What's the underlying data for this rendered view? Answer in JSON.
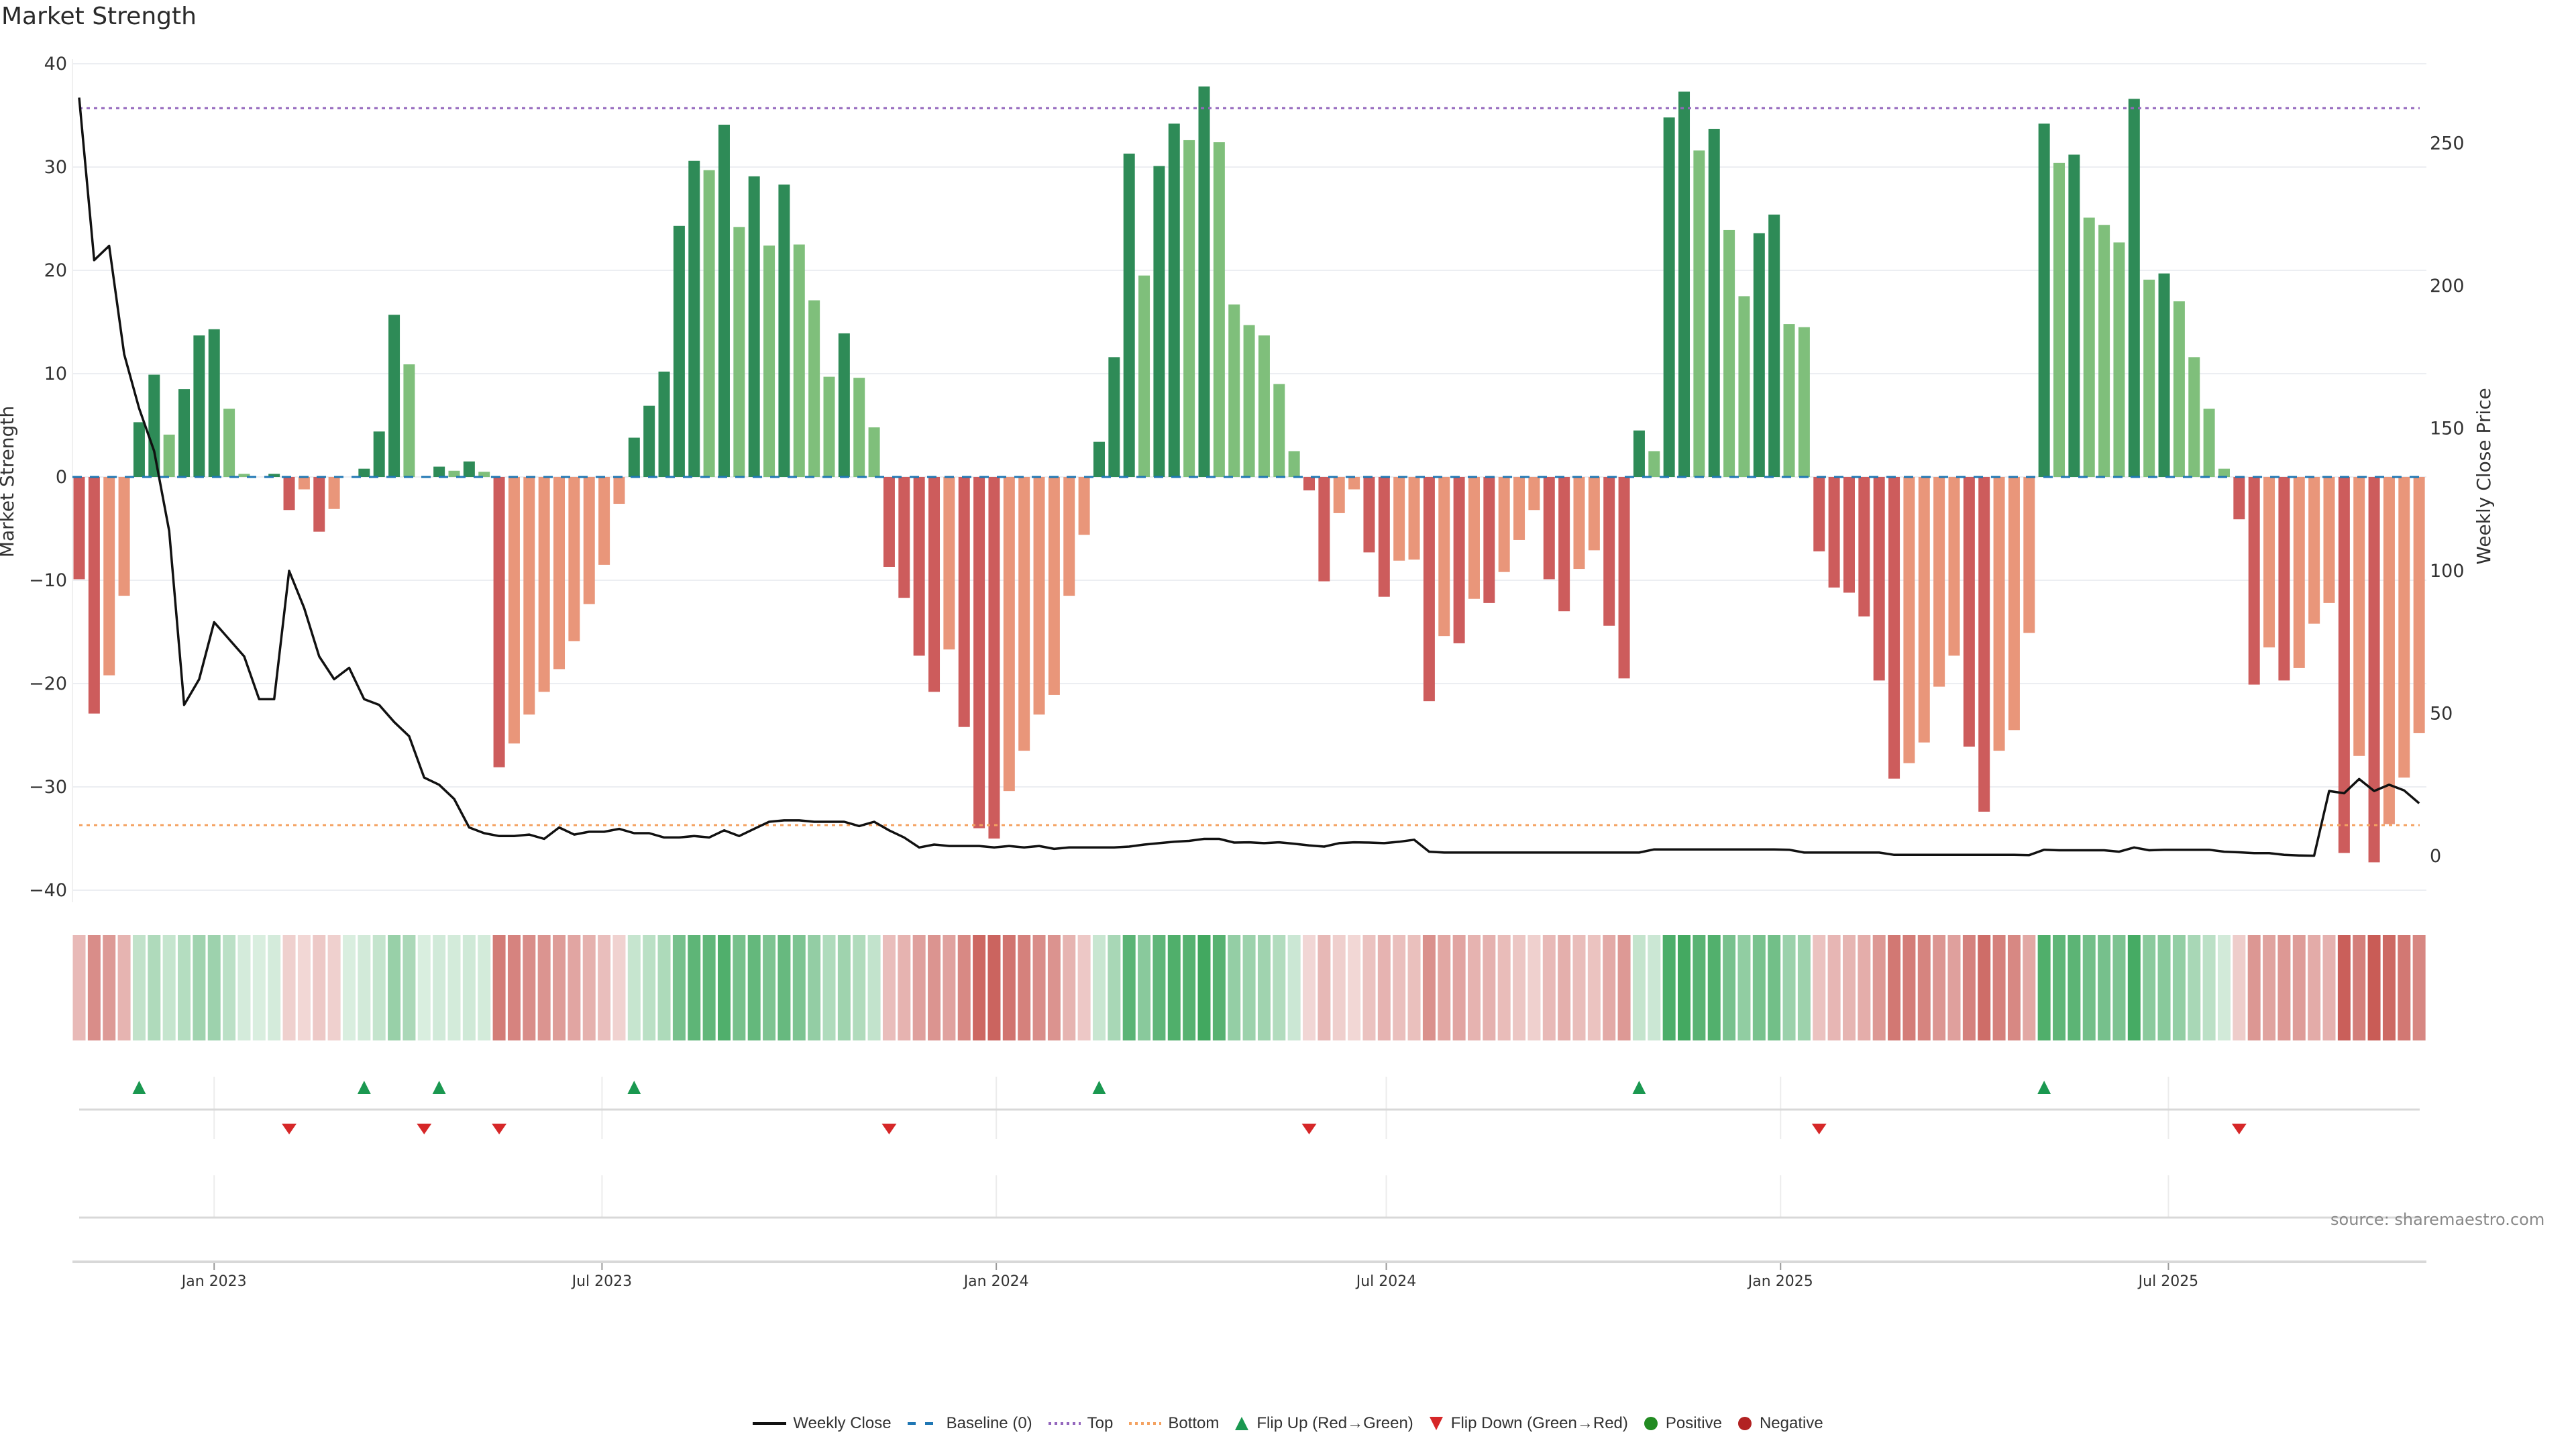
{
  "title": "Market Strength",
  "source": "source: sharemaestro.com",
  "colors": {
    "strong_green": "#2e8b57",
    "weak_green": "#7fbf7b",
    "strong_red": "#cd5c5c",
    "weak_red": "#e9967a",
    "heat_green": "#41a85f",
    "heat_red": "#c85a54",
    "close_line": "#111111",
    "baseline": "#1f77b4",
    "top": "#9467bd",
    "bottom": "#f4a261",
    "flip_up": "#1a9850",
    "flip_down": "#d62728",
    "positive": "#228b22",
    "negative": "#b22222"
  },
  "legend": [
    {
      "key": "weekly_close",
      "label": "Weekly Close"
    },
    {
      "key": "baseline",
      "label": "Baseline (0)"
    },
    {
      "key": "top",
      "label": "Top"
    },
    {
      "key": "bottom",
      "label": "Bottom"
    },
    {
      "key": "flip_up",
      "label": "Flip Up (Red→Green)"
    },
    {
      "key": "flip_down",
      "label": "Flip Down (Green→Red)"
    },
    {
      "key": "positive",
      "label": "Positive"
    },
    {
      "key": "negative",
      "label": "Negative"
    }
  ],
  "chart_data": {
    "type": "bar",
    "title": "Market Strength",
    "ylabel": "Market Strength",
    "y2label": "Weekly Close Price",
    "ylim": [
      -42,
      41
    ],
    "y_ticks": [
      "40",
      "30",
      "20",
      "10",
      "0",
      "−10",
      "−20",
      "−30",
      "−40"
    ],
    "y_tick_values": [
      40,
      30,
      20,
      10,
      0,
      -10,
      -20,
      -30,
      -40
    ],
    "y2_ticks": [
      "0",
      "50",
      "100",
      "150",
      "200",
      "250"
    ],
    "y2_tick_values": [
      0,
      50,
      100,
      150,
      200,
      250
    ],
    "x_ticks": [
      {
        "label": "Jan 2023",
        "date": "2023-01-01"
      },
      {
        "label": "Jul 2023",
        "date": "2023-07-01"
      },
      {
        "label": "Jan 2024",
        "date": "2024-01-01"
      },
      {
        "label": "Jul 2024",
        "date": "2024-07-01"
      },
      {
        "label": "Jan 2025",
        "date": "2025-01-01"
      },
      {
        "label": "Jul 2025",
        "date": "2025-07-01"
      }
    ],
    "start_date": "2022-10-30",
    "frequency": "weekly",
    "top": 35.7,
    "bottom": -33.7,
    "baseline": 0,
    "strength": [
      -9.9,
      -22.9,
      -19.2,
      -11.5,
      5.3,
      9.9,
      4.1,
      8.5,
      13.7,
      14.3,
      6.6,
      0.3,
      0,
      0.3,
      -3.2,
      -1.2,
      -5.3,
      -3.1,
      0,
      0.8,
      4.4,
      15.7,
      10.9,
      0,
      1.0,
      0.6,
      1.5,
      0.5,
      -28.1,
      -25.8,
      -23.0,
      -20.8,
      -18.6,
      -15.9,
      -12.3,
      -8.5,
      -2.6,
      3.8,
      6.9,
      10.2,
      24.3,
      30.6,
      29.7,
      34.1,
      24.2,
      29.1,
      22.4,
      28.3,
      22.5,
      17.1,
      9.7,
      13.9,
      9.6,
      4.8,
      -8.7,
      -11.7,
      -17.3,
      -20.8,
      -16.7,
      -24.2,
      -34.0,
      -35.0,
      -30.4,
      -26.5,
      -23.0,
      -21.1,
      -11.5,
      -5.6,
      3.4,
      11.6,
      31.3,
      19.5,
      30.1,
      34.2,
      32.6,
      37.8,
      32.4,
      16.7,
      14.7,
      13.7,
      9.0,
      2.5,
      -1.3,
      -10.1,
      -3.5,
      -1.2,
      -7.3,
      -11.6,
      -8.1,
      -8.0,
      -21.7,
      -15.4,
      -16.1,
      -11.8,
      -12.2,
      -9.2,
      -6.1,
      -3.2,
      -9.9,
      -13.0,
      -8.9,
      -7.1,
      -14.4,
      -19.5,
      4.5,
      2.5,
      34.8,
      37.3,
      31.6,
      33.7,
      23.9,
      17.5,
      23.6,
      25.4,
      14.8,
      14.5,
      -7.2,
      -10.7,
      -11.2,
      -13.5,
      -19.7,
      -29.2,
      -27.7,
      -25.7,
      -20.3,
      -17.3,
      -26.1,
      -32.4,
      -26.5,
      -24.5,
      -15.1,
      34.2,
      30.4,
      31.2,
      25.1,
      24.4,
      22.7,
      36.6,
      19.1,
      19.7,
      17.0,
      11.6,
      6.6,
      0.8,
      -4.1,
      -20.1,
      -16.5,
      -19.7,
      -18.5,
      -14.2,
      -12.2,
      -36.4,
      -27.0,
      -37.3,
      -33.6,
      -29.1,
      -24.8
    ],
    "weekly_close": [
      266,
      209,
      214,
      176,
      157,
      142,
      114,
      53,
      62,
      82,
      76,
      70,
      55,
      55,
      100,
      87,
      70,
      62,
      66,
      55,
      53,
      47,
      42,
      27.5,
      25,
      20,
      10,
      8,
      7,
      7,
      7.5,
      6,
      10,
      7.5,
      8.5,
      8.5,
      9.5,
      8,
      8,
      6.5,
      6.5,
      7,
      6.5,
      9,
      7,
      9.5,
      12,
      12.5,
      12.5,
      12,
      12,
      12,
      10.5,
      12,
      9,
      6.5,
      3,
      4,
      3.5,
      3.5,
      3.5,
      3,
      3.5,
      3,
      3.5,
      2.5,
      3,
      3,
      3,
      3,
      3.3,
      4,
      4.5,
      5,
      5.3,
      6,
      6,
      4.7,
      4.8,
      4.5,
      4.8,
      4.3,
      3.7,
      3.3,
      4.5,
      4.8,
      4.7,
      4.5,
      5,
      5.7,
      1.5,
      1.2,
      1.2,
      1.2,
      1.2,
      1.2,
      1.2,
      1.2,
      1.2,
      1.2,
      1.2,
      1.2,
      1.2,
      1.2,
      1.2,
      2.3,
      2.3,
      2.3,
      2.3,
      2.3,
      2.3,
      2.3,
      2.3,
      2.3,
      2.2,
      1.2,
      1.2,
      1.2,
      1.2,
      1.2,
      1.2,
      0.4,
      0.4,
      0.4,
      0.4,
      0.4,
      0.4,
      0.4,
      0.4,
      0.4,
      0.3,
      2.2,
      2,
      2,
      2,
      2,
      1.5,
      3,
      2,
      2.2,
      2.2,
      2.2,
      2.2,
      1.5,
      1.3,
      1,
      1,
      0.4,
      0.2,
      0.1,
      22.8,
      22,
      27,
      22.8,
      25,
      23,
      18.5
    ],
    "flip_up": [
      "2022-11-27",
      "2023-03-12",
      "2023-04-16",
      "2023-07-16",
      "2024-02-18",
      "2024-10-27",
      "2025-05-04"
    ],
    "flip_down": [
      "2023-02-05",
      "2023-04-09",
      "2023-05-14",
      "2023-11-12",
      "2024-05-26",
      "2025-01-19",
      "2025-08-03"
    ]
  }
}
